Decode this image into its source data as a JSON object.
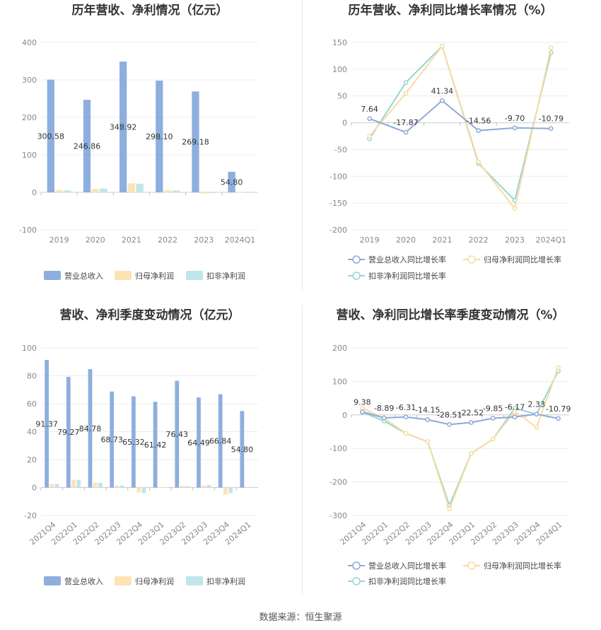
{
  "source_label": "数据来源：恒生聚源",
  "colors": {
    "revenue": "#8eaede",
    "parent_profit": "#fce3b4",
    "deducted_profit": "#bfe6e8",
    "revenue_line": "#8ea9d6",
    "parent_line": "#f8dca3",
    "deducted_line": "#95d6d2"
  },
  "chart_data": [
    {
      "type": "bar",
      "title": "历年营收、净利情况（亿元）",
      "categories": [
        "2019",
        "2020",
        "2021",
        "2022",
        "2023",
        "2024Q1"
      ],
      "ylim": [
        -100,
        400
      ],
      "yticks": [
        -100,
        0,
        100,
        200,
        300,
        400
      ],
      "series": [
        {
          "name": "营业总收入",
          "values": [
            300.58,
            246.86,
            348.92,
            298.1,
            269.18,
            54.8
          ],
          "labels": [
            "300.58",
            "246.86",
            "348.92",
            "298.10",
            "269.18",
            "54.80"
          ]
        },
        {
          "name": "归母净利润",
          "values": [
            6,
            9,
            24,
            6,
            -3,
            0.5
          ]
        },
        {
          "name": "扣非净利润",
          "values": [
            5,
            10,
            23,
            5,
            -2,
            0.4
          ]
        }
      ],
      "legend": "bottom"
    },
    {
      "type": "line",
      "title": "历年营收、净利同比增长率情况（%）",
      "categories": [
        "2019",
        "2020",
        "2021",
        "2022",
        "2023",
        "2024Q1"
      ],
      "ylim": [
        -200,
        150
      ],
      "yticks": [
        -200,
        -150,
        -100,
        -50,
        0,
        50,
        100,
        150
      ],
      "series": [
        {
          "name": "营业总收入同比增长率",
          "values": [
            7.64,
            -17.87,
            41.34,
            -14.56,
            -9.7,
            -10.79
          ],
          "labels": [
            "7.64",
            "-17.87",
            "41.34",
            "-14.56",
            "-9.70",
            "-10.79"
          ]
        },
        {
          "name": "归母净利润同比增长率",
          "values": [
            -25,
            55,
            143,
            -73,
            -160,
            140
          ]
        },
        {
          "name": "扣非净利润同比增长率",
          "values": [
            -30,
            75,
            143,
            -76,
            -145,
            131
          ]
        }
      ],
      "legend": "bottom"
    },
    {
      "type": "bar",
      "title": "营收、净利季度变动情况（亿元）",
      "categories": [
        "2021Q4",
        "2022Q1",
        "2022Q2",
        "2022Q3",
        "2022Q4",
        "2023Q1",
        "2023Q2",
        "2023Q3",
        "2023Q4",
        "2024Q1"
      ],
      "ylim": [
        -20,
        100
      ],
      "yticks": [
        -20,
        0,
        20,
        40,
        60,
        80,
        100
      ],
      "series": [
        {
          "name": "营业总收入",
          "values": [
            91.37,
            79.27,
            84.78,
            68.73,
            65.32,
            61.42,
            76.43,
            64.49,
            66.84,
            54.8
          ],
          "labels": [
            "91.37",
            "79.27",
            "84.78",
            "68.73",
            "65.32",
            "61.42",
            "76.43",
            "64.49",
            "66.84",
            "54.80"
          ]
        },
        {
          "name": "归母净利润",
          "values": [
            2.5,
            5.5,
            3.5,
            1.5,
            -3.5,
            0.3,
            1.2,
            1.5,
            -5.0,
            0.5
          ]
        },
        {
          "name": "扣非净利润",
          "values": [
            2.5,
            5.5,
            3.5,
            1.5,
            -4.0,
            0.2,
            1.0,
            1.8,
            -4.0,
            0.4
          ]
        }
      ],
      "legend": "bottom"
    },
    {
      "type": "line",
      "title": "营收、净利同比增长率季度变动情况（%）",
      "categories": [
        "2021Q4",
        "2022Q1",
        "2022Q2",
        "2022Q3",
        "2022Q4",
        "2023Q1",
        "2023Q2",
        "2023Q3",
        "2023Q4",
        "2024Q1"
      ],
      "ylim": [
        -300,
        200
      ],
      "yticks": [
        -300,
        -200,
        -100,
        0,
        100,
        200
      ],
      "series": [
        {
          "name": "营业总收入同比增长率",
          "values": [
            9.38,
            -8.89,
            -6.31,
            -14.15,
            -28.51,
            -22.52,
            -9.85,
            -6.17,
            2.33,
            -10.79
          ],
          "labels": [
            "9.38",
            "-8.89",
            "-6.31",
            "-14.15",
            "-28.51",
            "-22.52",
            "-9.85",
            "-6.17",
            "2.33",
            "-10.79"
          ]
        },
        {
          "name": "归母净利润同比增长率",
          "values": [
            20,
            -10,
            -55,
            -80,
            -280,
            -115,
            -72,
            10,
            -37,
            141
          ]
        },
        {
          "name": "扣非净利润同比增长率",
          "values": [
            8,
            -18,
            -55,
            -80,
            -270,
            -115,
            -72,
            20,
            2,
            131
          ]
        }
      ],
      "legend": "bottom"
    }
  ]
}
